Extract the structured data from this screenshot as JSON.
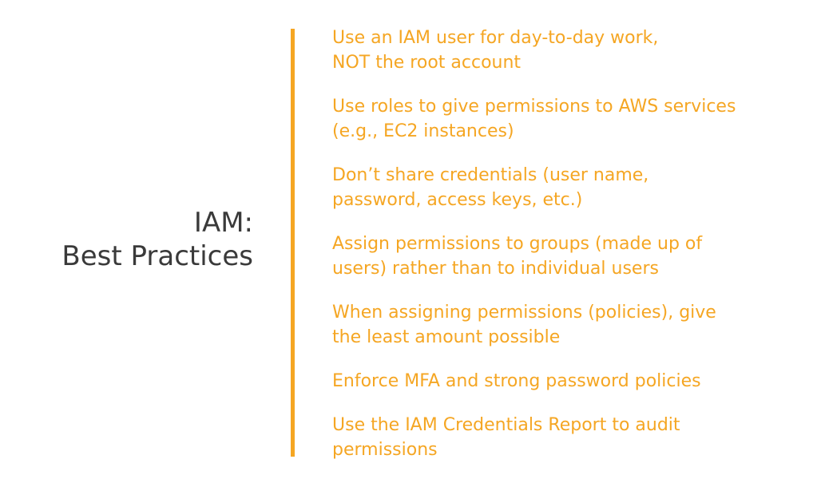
{
  "title": {
    "line1": "IAM:",
    "line2": "Best Practices"
  },
  "colors": {
    "accent": "#f5a623",
    "title_text": "#3a3a3a",
    "background": "#ffffff"
  },
  "bullets": [
    "Use an IAM user for day-to-day work,\nNOT the root account",
    "Use roles to give permissions to AWS services\n(e.g., EC2 instances)",
    "Don’t share credentials (user name,\npassword, access keys, etc.)",
    "Assign permissions to groups (made up of\nusers) rather than to individual users",
    "When assigning permissions (policies), give\nthe least amount possible",
    "Enforce MFA and strong password policies",
    "Use the IAM Credentials Report to audit\npermissions"
  ]
}
